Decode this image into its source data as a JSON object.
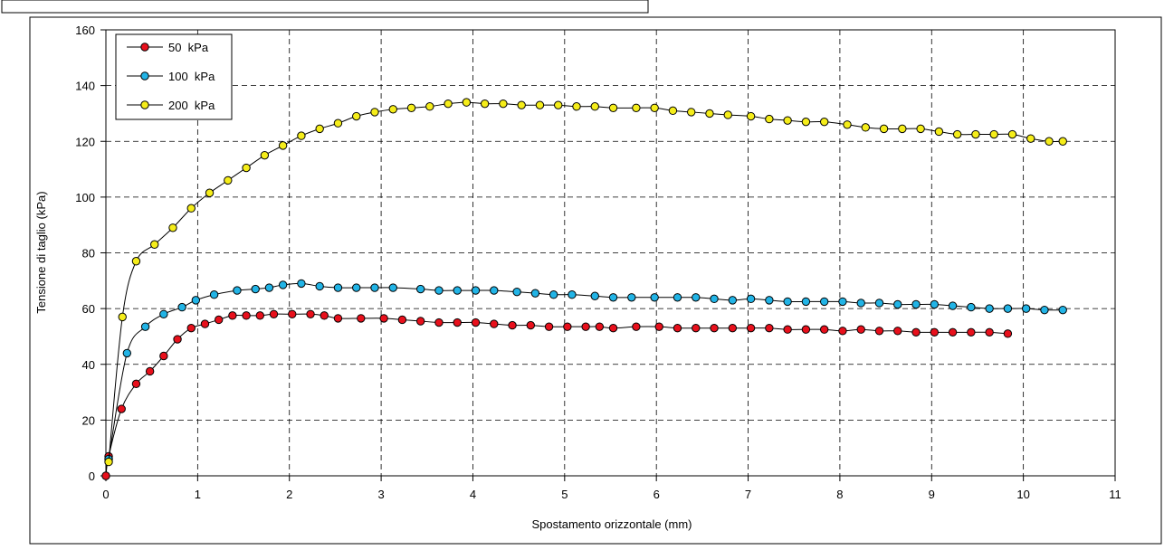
{
  "chart_data": {
    "type": "scatter",
    "xlabel": "Spostamento orizzontale (mm)",
    "ylabel": "Tensione di taglio (kPa)",
    "xlim": [
      0,
      11
    ],
    "ylim": [
      0,
      160
    ],
    "xticks": [
      0,
      1,
      2,
      3,
      4,
      5,
      6,
      7,
      8,
      9,
      10,
      11
    ],
    "yticks": [
      0,
      20,
      40,
      60,
      80,
      100,
      120,
      140,
      160
    ],
    "grid": true,
    "legend_position": "top-left",
    "series": [
      {
        "name": "50  kPa",
        "color": "#e8101c",
        "x": [
          0,
          0.03,
          0.17,
          0.33,
          0.48,
          0.63,
          0.78,
          0.93,
          1.08,
          1.23,
          1.38,
          1.53,
          1.68,
          1.83,
          2.03,
          2.23,
          2.38,
          2.53,
          2.78,
          3.03,
          3.23,
          3.43,
          3.63,
          3.83,
          4.03,
          4.23,
          4.43,
          4.63,
          4.83,
          5.03,
          5.23,
          5.38,
          5.53,
          5.78,
          6.03,
          6.23,
          6.43,
          6.63,
          6.83,
          7.03,
          7.23,
          7.43,
          7.63,
          7.83,
          8.03,
          8.23,
          8.43,
          8.63,
          8.83,
          9.03,
          9.23,
          9.43,
          9.63,
          9.83
        ],
        "y": [
          0,
          7,
          24,
          33,
          37.5,
          43,
          49,
          53,
          54.5,
          56,
          57.5,
          57.5,
          57.5,
          58,
          58,
          58,
          57.5,
          56.5,
          56.5,
          56.5,
          56,
          55.5,
          55,
          55,
          55,
          54.5,
          54,
          54,
          53.5,
          53.5,
          53.5,
          53.5,
          53,
          53.5,
          53.5,
          53,
          53,
          53,
          53,
          53,
          53,
          52.5,
          52.5,
          52.5,
          52,
          52.5,
          52,
          52,
          51.5,
          51.5,
          51.5,
          51.5,
          51.5,
          51
        ]
      },
      {
        "name": "100  kPa",
        "color": "#22b4e6",
        "x": [
          0.03,
          0.23,
          0.43,
          0.63,
          0.83,
          0.98,
          1.18,
          1.43,
          1.63,
          1.78,
          1.93,
          2.13,
          2.33,
          2.53,
          2.73,
          2.93,
          3.13,
          3.43,
          3.63,
          3.83,
          4.03,
          4.23,
          4.48,
          4.68,
          4.88,
          5.08,
          5.33,
          5.53,
          5.73,
          5.98,
          6.23,
          6.43,
          6.63,
          6.83,
          7.03,
          7.23,
          7.43,
          7.63,
          7.83,
          8.03,
          8.23,
          8.43,
          8.63,
          8.83,
          9.03,
          9.23,
          9.43,
          9.63,
          9.83,
          10.03,
          10.23,
          10.43
        ],
        "y": [
          6,
          44,
          53.5,
          58,
          60.5,
          63,
          65,
          66.5,
          67,
          67.5,
          68.5,
          69,
          68,
          67.5,
          67.5,
          67.5,
          67.5,
          67,
          66.5,
          66.5,
          66.5,
          66.5,
          66,
          65.5,
          65,
          65,
          64.5,
          64,
          64,
          64,
          64,
          64,
          63.5,
          63,
          63.5,
          63,
          62.5,
          62.5,
          62.5,
          62.5,
          62,
          62,
          61.5,
          61.5,
          61.5,
          61,
          60.5,
          60,
          60,
          60,
          59.5,
          59.5
        ]
      },
      {
        "name": "200  kPa",
        "color": "#f5ed1a",
        "x": [
          0.03,
          0.18,
          0.33,
          0.53,
          0.73,
          0.93,
          1.13,
          1.33,
          1.53,
          1.73,
          1.93,
          2.13,
          2.33,
          2.53,
          2.73,
          2.93,
          3.13,
          3.33,
          3.53,
          3.73,
          3.93,
          4.13,
          4.33,
          4.53,
          4.73,
          4.93,
          5.13,
          5.33,
          5.53,
          5.78,
          5.98,
          6.18,
          6.38,
          6.58,
          6.78,
          7.03,
          7.23,
          7.43,
          7.63,
          7.83,
          8.08,
          8.28,
          8.48,
          8.68,
          8.88,
          9.08,
          9.28,
          9.48,
          9.68,
          9.88,
          10.08,
          10.28,
          10.43
        ],
        "y": [
          5,
          57,
          77,
          83,
          89,
          96,
          101.5,
          106,
          110.5,
          115,
          118.5,
          122,
          124.5,
          126.5,
          129,
          130.5,
          131.5,
          132,
          132.5,
          133.5,
          134,
          133.5,
          133.5,
          133,
          133,
          133,
          132.5,
          132.5,
          132,
          132,
          132,
          131,
          130.5,
          130,
          129.5,
          129,
          128,
          127.5,
          127,
          127,
          126,
          125,
          124.5,
          124.5,
          124.5,
          123.5,
          122.5,
          122.5,
          122.5,
          122.5,
          121,
          120,
          120
        ]
      }
    ]
  }
}
